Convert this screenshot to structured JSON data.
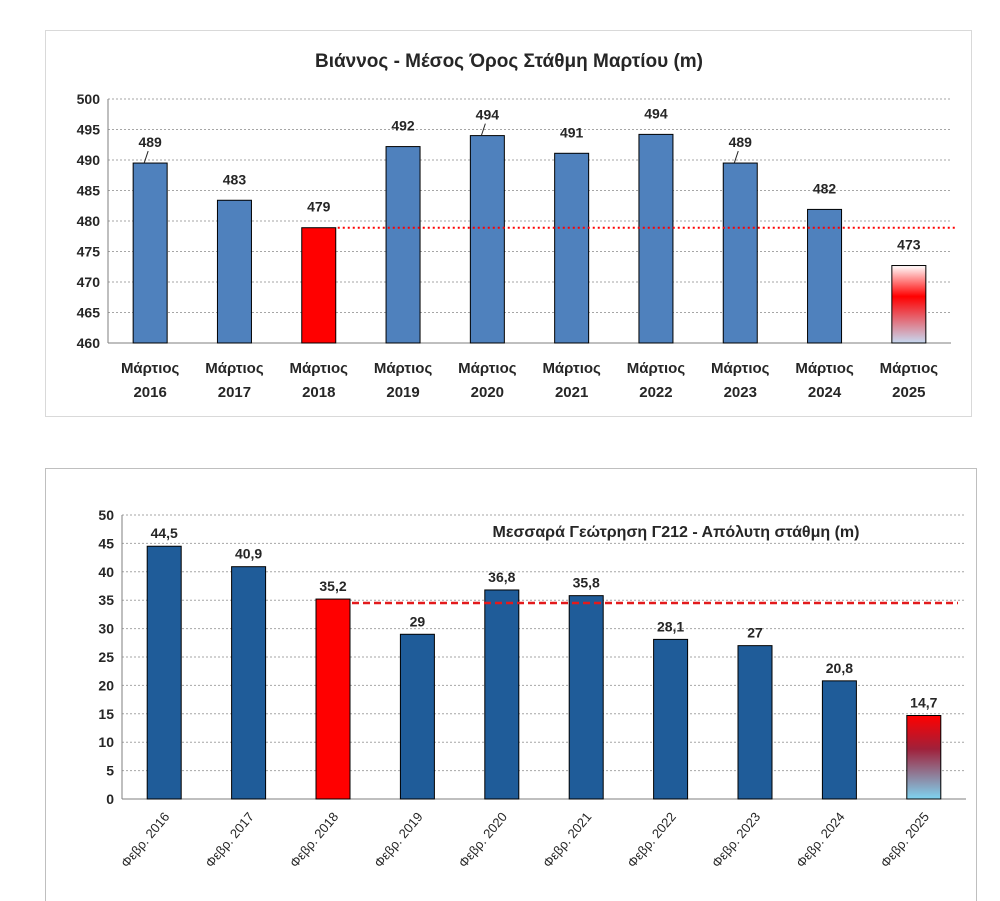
{
  "chart_data": [
    {
      "type": "bar",
      "title": "Βιάννος - Μέσος Όρος Στάθμη Μαρτίου (m)",
      "categories": [
        [
          "Μάρτιος",
          "2016"
        ],
        [
          "Μάρτιος",
          "2017"
        ],
        [
          "Μάρτιος",
          "2018"
        ],
        [
          "Μάρτιος",
          "2019"
        ],
        [
          "Μάρτιος",
          "2020"
        ],
        [
          "Μάρτιος",
          "2021"
        ],
        [
          "Μάρτιος",
          "2022"
        ],
        [
          "Μάρτιος",
          "2023"
        ],
        [
          "Μάρτιος",
          "2024"
        ],
        [
          "Μάρτιος",
          "2025"
        ]
      ],
      "values": [
        489.5,
        483.4,
        478.9,
        492.2,
        494.0,
        491.1,
        494.2,
        489.5,
        481.9,
        472.7
      ],
      "data_labels": [
        "489",
        "483",
        "479",
        "492",
        "494",
        "491",
        "494",
        "489",
        "482",
        "473"
      ],
      "ylim": [
        460,
        500
      ],
      "yticks": [
        "460",
        "465",
        "470",
        "475",
        "480",
        "485",
        "490",
        "495",
        "500"
      ],
      "reference_line": 478.9,
      "grid": true,
      "colors": {
        "bar": "#4f81bd",
        "highlight": "#ff0000",
        "reference_line": "#ff0000",
        "last_bar_gradient": [
          "#ffffff",
          "#ff0000",
          "#c6d9f1"
        ]
      }
    },
    {
      "type": "bar",
      "title": "Μεσσαρά Γεώτρηση Γ212 - Απόλυτη στάθμη (m)",
      "categories": [
        "Φεβρ. 2016",
        "Φεβρ. 2017",
        "Φεβρ. 2018",
        "Φεβρ. 2019",
        "Φεβρ. 2020",
        "Φεβρ. 2021",
        "Φεβρ. 2022",
        "Φεβρ. 2023",
        "Φεβρ. 2024",
        "Φεβρ. 2025"
      ],
      "values": [
        44.5,
        40.9,
        35.2,
        29,
        36.8,
        35.8,
        28.1,
        27,
        20.8,
        14.7
      ],
      "data_labels": [
        "44,5",
        "40,9",
        "35,2",
        "29",
        "36,8",
        "35,8",
        "28,1",
        "27",
        "20,8",
        "14,7"
      ],
      "ylim": [
        0,
        50
      ],
      "yticks": [
        "0",
        "5",
        "10",
        "15",
        "20",
        "25",
        "30",
        "35",
        "40",
        "45",
        "50"
      ],
      "reference_line": 34.5,
      "grid": true,
      "colors": {
        "bar": "#1f5c99",
        "highlight": "#ff0000",
        "reference_line": "#e31a1c",
        "last_bar_gradient": [
          "#ff0000",
          "#a0203a",
          "#7fd4f0"
        ]
      }
    }
  ]
}
